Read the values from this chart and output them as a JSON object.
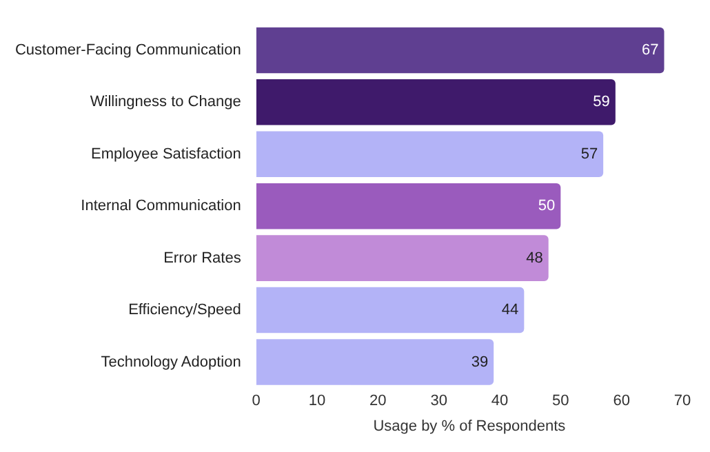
{
  "chart_data": {
    "type": "bar",
    "orientation": "horizontal",
    "xlabel": "Usage by % of Respondents",
    "categories": [
      "Customer-Facing Communication",
      "Willingness to Change",
      "Employee Satisfaction",
      "Internal Communication",
      "Error Rates",
      "Efficiency/Speed",
      "Technology Adoption"
    ],
    "values": [
      67,
      59,
      57,
      50,
      48,
      44,
      39
    ],
    "colors": [
      "#5f3f91",
      "#3f1a6b",
      "#b3b3f7",
      "#9a5bbd",
      "#c18bd8",
      "#b3b3f7",
      "#b3b3f7"
    ],
    "xlim": [
      0,
      70
    ],
    "xticks": [
      0,
      10,
      20,
      30,
      40,
      50,
      60,
      70
    ],
    "data_labels": true,
    "grid": false,
    "legend": false
  }
}
